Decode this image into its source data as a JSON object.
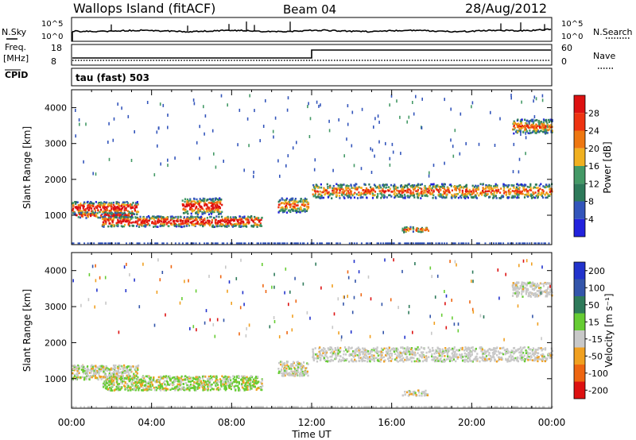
{
  "header": {
    "station": "Wallops Island (fitACF)",
    "beam": "Beam 04",
    "date": "28/Aug/2012"
  },
  "noise_panel": {
    "left_label": "N.Sky",
    "left_ticks": [
      "10^5",
      "10^0"
    ],
    "right_label": "N.Search",
    "right_ticks": [
      "10^5",
      "10^0"
    ]
  },
  "freq_panel": {
    "left_label": "Freq.",
    "left_unit": "[MHz]",
    "left_ticks": [
      "18",
      "8"
    ],
    "right_label": "Nave",
    "right_ticks": [
      "60",
      "0"
    ],
    "cpid_label": "CPID",
    "cpid_text": "tau (fast) 503"
  },
  "chart_data": [
    {
      "type": "heatmap",
      "panel": "power",
      "xlabel": "",
      "ylabel": "Slant Range [km]",
      "x_ticks": [
        "00:00",
        "04:00",
        "08:00",
        "12:00",
        "16:00",
        "20:00",
        "00:00"
      ],
      "x_range_hours": [
        0,
        24
      ],
      "y_ticks": [
        1000,
        2000,
        3000,
        4000
      ],
      "ylim": [
        180,
        4500
      ],
      "colorbar_label": "Power [dB]",
      "colorbar_ticks": [
        "4",
        "8",
        "12",
        "16",
        "20",
        "24",
        "28"
      ],
      "colorbar_range": [
        0,
        30
      ],
      "colors": [
        "#2222dd",
        "#3355bb",
        "#2e7a5a",
        "#449966",
        "#f0b020",
        "#ee7711",
        "#ee3311",
        "#dd1111"
      ],
      "echo_regions": [
        {
          "t0": 0.0,
          "t1": 3.3,
          "r0": 1050,
          "r1": 1400
        },
        {
          "t0": 0.2,
          "t1": 3.0,
          "r0": 950,
          "r1": 1100
        },
        {
          "t0": 1.5,
          "t1": 9.5,
          "r0": 700,
          "r1": 1000
        },
        {
          "t0": 5.5,
          "t1": 7.5,
          "r0": 1050,
          "r1": 1500
        },
        {
          "t0": 10.3,
          "t1": 11.8,
          "r0": 1100,
          "r1": 1500
        },
        {
          "t0": 12.0,
          "t1": 24.0,
          "r0": 1500,
          "r1": 1900
        },
        {
          "t0": 16.5,
          "t1": 17.8,
          "r0": 550,
          "r1": 700
        },
        {
          "t0": 22.0,
          "t1": 24.0,
          "r0": 3300,
          "r1": 3700
        }
      ]
    },
    {
      "type": "heatmap",
      "panel": "velocity",
      "xlabel": "Time UT",
      "ylabel": "Slant Range [km]",
      "x_ticks": [
        "00:00",
        "04:00",
        "08:00",
        "12:00",
        "16:00",
        "20:00",
        "00:00"
      ],
      "x_range_hours": [
        0,
        24
      ],
      "y_ticks": [
        1000,
        2000,
        3000,
        4000
      ],
      "ylim": [
        180,
        4500
      ],
      "colorbar_label": "Velocity [m s⁻¹]",
      "colorbar_ticks": [
        "200",
        "100",
        "50",
        "15",
        "-15",
        "-50",
        "-100",
        "-200"
      ],
      "colorbar_range": [
        -250,
        250
      ],
      "colors": [
        "#2233cc",
        "#3355aa",
        "#2e7a5a",
        "#66cc33",
        "#c8c8c8",
        "#f0a020",
        "#ee6611",
        "#dd1111"
      ],
      "echo_regions": [
        {
          "t0": 0.0,
          "t1": 3.3,
          "r0": 1000,
          "r1": 1400
        },
        {
          "t0": 1.5,
          "t1": 9.5,
          "r0": 700,
          "r1": 1100
        },
        {
          "t0": 10.3,
          "t1": 11.8,
          "r0": 1100,
          "r1": 1500
        },
        {
          "t0": 12.0,
          "t1": 24.0,
          "r0": 1500,
          "r1": 1900
        },
        {
          "t0": 16.5,
          "t1": 17.8,
          "r0": 550,
          "r1": 700
        },
        {
          "t0": 22.0,
          "t1": 24.0,
          "r0": 3300,
          "r1": 3700
        }
      ]
    }
  ]
}
